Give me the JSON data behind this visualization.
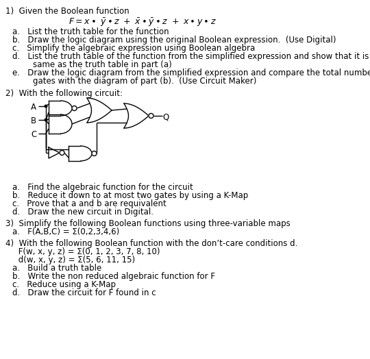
{
  "background_color": "#ffffff",
  "font_size": 8.5,
  "fig_width": 5.4,
  "fig_height": 5.24,
  "section1_title": "1)  Given the Boolean function",
  "section1_items": [
    "a.   List the truth table for the function",
    "b.   Draw the logic diagram using the original Boolean expression.  (Use Digital)",
    "c.   Simplify the algebraic expression using Boolean algebra",
    "d.   List the truth table of the function from the simplified expression and show that it is the",
    "        same as the truth table in part (a)",
    "e.   Draw the logic diagram from the simplified expression and compare the total number of",
    "        gates with the diagram of part (b).  (Use Circuit Maker)"
  ],
  "section2_title": "2)  With the following circuit:",
  "section2_items": [
    "a.   Find the algebraic function for the circuit",
    "b.   Reduce it down to at most two gates by using a K-Map",
    "c.   Prove that a and b are requivalent",
    "d.   Draw the new circuit in Digital."
  ],
  "section3_title": "3)  Simplify the following Boolean functions using three-variable maps",
  "section3_items": [
    "a.   F(A,B,C) = Σ(0,2,3,4,6)"
  ],
  "section4_title": "4)  With the following Boolean function with the don’t-care conditions d.",
  "section4_intro": [
    "     F(w, x, y, z) = Σ(0, 1, 2, 3, 7, 8, 10)",
    "     d(w, x, y, z) = Σ(5, 6, 11, 15)"
  ],
  "section4_items": [
    "a.   Build a truth table",
    "b.   Write the non reduced algebraic function for F",
    "c.   Reduce using a K-Map",
    "d.   Draw the circuit for F found in c"
  ]
}
